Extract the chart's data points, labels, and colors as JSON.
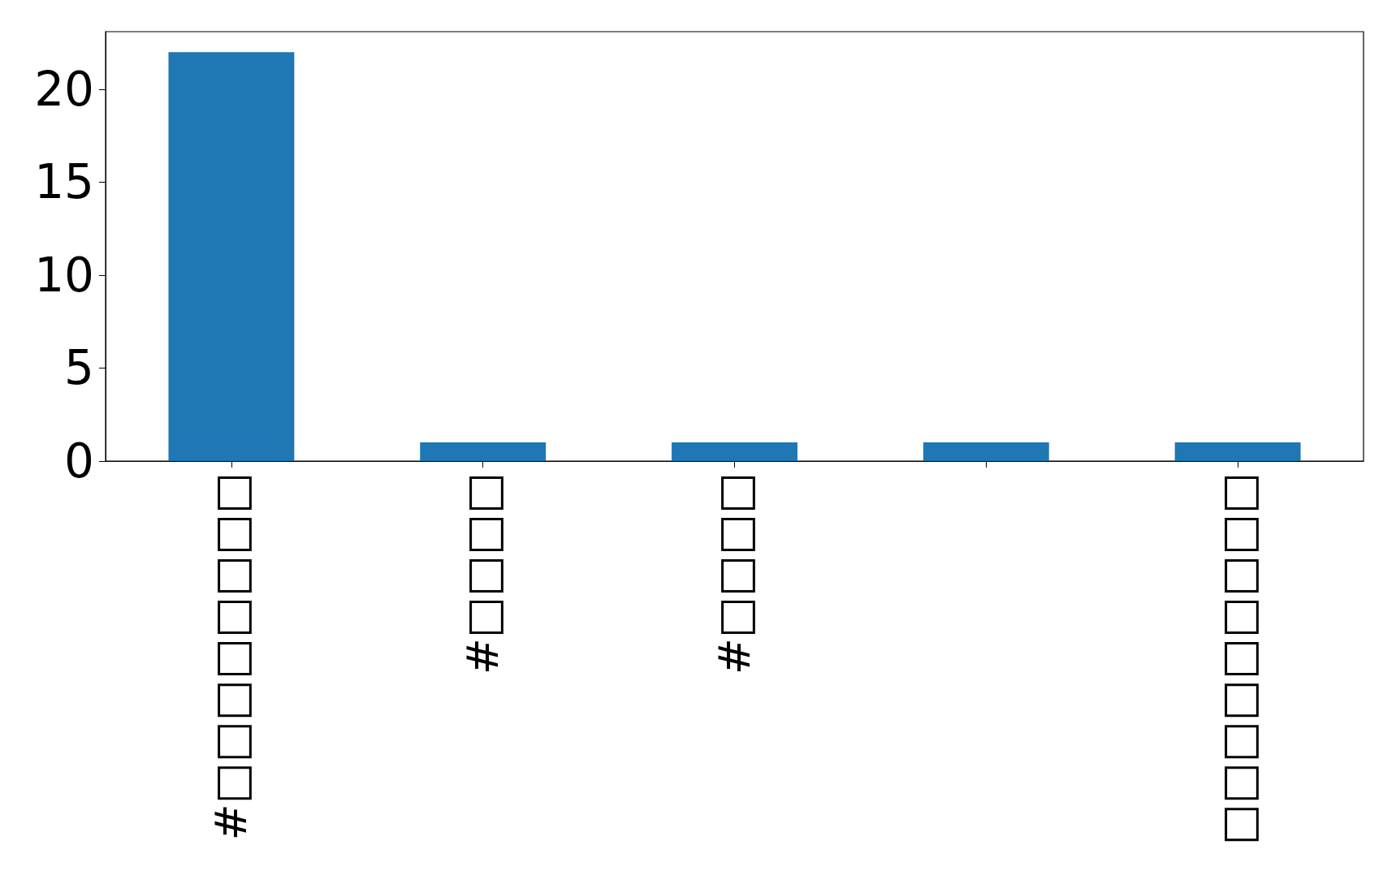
{
  "chart_data": {
    "type": "bar",
    "categories": [
      "#□□□□□□□□",
      "#□□□□",
      "#□□□□",
      null,
      "□□□□□□□□□"
    ],
    "values": [
      22,
      1,
      1,
      1,
      1
    ],
    "color": "#1f77b4",
    "ylim": [
      0,
      23.1
    ],
    "yticks": [
      0,
      5,
      10,
      15,
      20
    ],
    "grid": false
  }
}
